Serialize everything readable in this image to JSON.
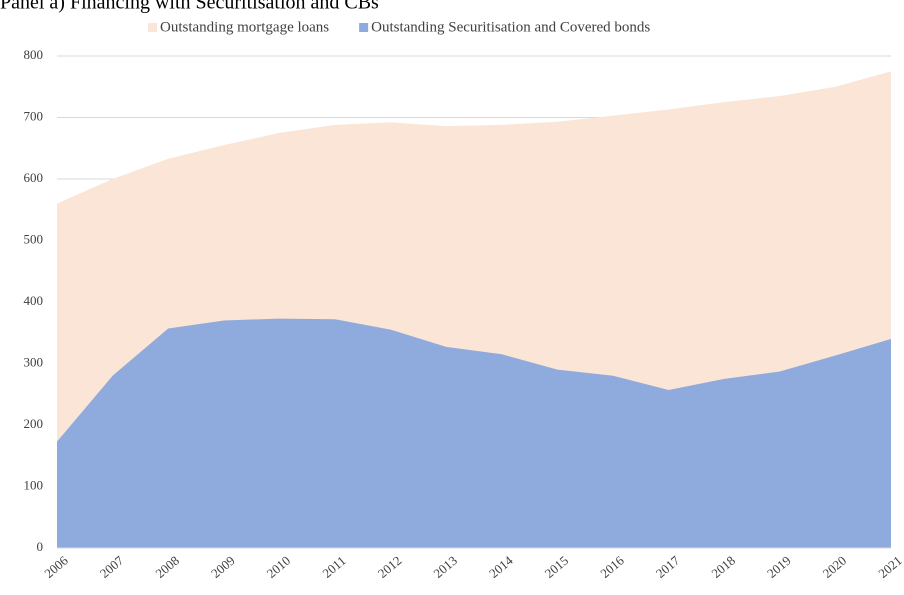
{
  "chart_data": {
    "type": "area",
    "title": "Panel a) Financing with Securitisation and CBs",
    "categories": [
      "2006",
      "2007",
      "2008",
      "2009",
      "2010",
      "2011",
      "2012",
      "2013",
      "2014",
      "2015",
      "2016",
      "2017",
      "2018",
      "2019",
      "2020",
      "2021"
    ],
    "series": [
      {
        "name": "Outstanding mortgage loans",
        "color": "#fbe5d6",
        "values": [
          560,
          600,
          633,
          655,
          675,
          688,
          692,
          686,
          688,
          693,
          703,
          713,
          725,
          735,
          750,
          775
        ]
      },
      {
        "name": "Outstanding Securitisation and Covered bonds",
        "color": "#8faadc",
        "values": [
          173,
          280,
          357,
          370,
          373,
          372,
          355,
          327,
          315,
          290,
          280,
          257,
          275,
          287,
          313,
          340
        ]
      }
    ],
    "ylim": [
      0,
      800
    ],
    "yticks": [
      0,
      100,
      200,
      300,
      400,
      500,
      600,
      700,
      800
    ],
    "grid": true
  }
}
